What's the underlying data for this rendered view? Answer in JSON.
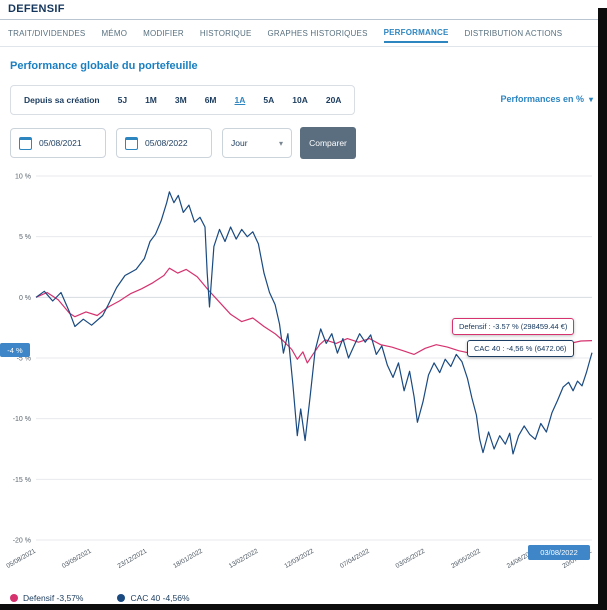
{
  "header": {
    "title": "DEFENSIF"
  },
  "tabs": [
    {
      "label": "TRAIT/DIVIDENDES"
    },
    {
      "label": "MÉMO"
    },
    {
      "label": "MODIFIER"
    },
    {
      "label": "HISTORIQUE"
    },
    {
      "label": "GRAPHES HISTORIQUES"
    },
    {
      "label": "PERFORMANCE"
    },
    {
      "label": "DISTRIBUTION ACTIONS"
    }
  ],
  "section_title": "Performance globale du portefeuille",
  "periods": [
    {
      "label": "Depuis sa création"
    },
    {
      "label": "5J"
    },
    {
      "label": "1M"
    },
    {
      "label": "3M"
    },
    {
      "label": "6M"
    },
    {
      "label": "1A"
    },
    {
      "label": "5A"
    },
    {
      "label": "10A"
    },
    {
      "label": "20A"
    }
  ],
  "active_period": "1A",
  "display_select": {
    "label": "Performances en %"
  },
  "controls": {
    "date_from": "05/08/2021",
    "date_to": "05/08/2022",
    "interval": "Jour",
    "compare": "Comparer"
  },
  "chart_badges": {
    "y_value": "-4 %",
    "x_value": "03/08/2022"
  },
  "tooltips": {
    "defensif": "Defensif : -3.57 % (298459.44 €)",
    "cac40": "CAC 40 : -4,56 % (6472.06)"
  },
  "legend": [
    {
      "label": "Defensif -3,57%",
      "color": "#d5326e"
    },
    {
      "label": "CAC 40 -4,56%",
      "color": "#1a4a80"
    }
  ],
  "colors": {
    "accent_blue": "#2e86c1",
    "navy": "#14365c",
    "badge_blue": "#3e86c7",
    "pink_series": "#d5326e",
    "blue_series": "#1a4a80"
  },
  "chart_data": {
    "type": "line",
    "title": "Performance globale du portefeuille",
    "xlabel": "",
    "ylabel": "",
    "ylim": [
      -20,
      10
    ],
    "yticks": [
      10,
      5,
      0,
      -5,
      -10,
      -15,
      -20
    ],
    "ytick_suffix": " %",
    "grid": "horizontal",
    "legend_position": "bottom",
    "xticklabels": [
      "05/08/2021",
      "03/09/2021",
      "23/12/2021",
      "18/01/2022",
      "13/02/2022",
      "12/03/2022",
      "07/04/2022",
      "03/05/2022",
      "29/05/2022",
      "24/06/2022",
      "20/07/2022"
    ],
    "x_unit": "percent_of_range",
    "series": [
      {
        "name": "Defensif",
        "color": "#d5326e",
        "final_value_pct": -3.57,
        "final_portfolio_value_eur": 298459.44,
        "points": [
          [
            0,
            0
          ],
          [
            2,
            0.4
          ],
          [
            4,
            -0.2
          ],
          [
            6,
            -1.3
          ],
          [
            7,
            -1.6
          ],
          [
            9,
            -1.2
          ],
          [
            11,
            -1.5
          ],
          [
            13,
            -0.8
          ],
          [
            15,
            -0.3
          ],
          [
            17,
            0.3
          ],
          [
            19,
            0.7
          ],
          [
            21,
            1.2
          ],
          [
            23,
            1.8
          ],
          [
            24,
            2.4
          ],
          [
            25.5,
            2.0
          ],
          [
            27,
            2.3
          ],
          [
            29,
            1.7
          ],
          [
            31,
            0.6
          ],
          [
            33,
            -0.4
          ],
          [
            35,
            -1.4
          ],
          [
            37,
            -2.0
          ],
          [
            39,
            -1.7
          ],
          [
            41,
            -2.4
          ],
          [
            43,
            -3.0
          ],
          [
            44.5,
            -3.6
          ],
          [
            46,
            -4.3
          ],
          [
            47,
            -5.1
          ],
          [
            48,
            -4.5
          ],
          [
            48.8,
            -5.4
          ],
          [
            49.8,
            -4.7
          ],
          [
            51,
            -3.9
          ],
          [
            52,
            -3.5
          ],
          [
            54,
            -3.8
          ],
          [
            56,
            -3.4
          ],
          [
            58,
            -3.7
          ],
          [
            60,
            -3.4
          ],
          [
            62,
            -3.9
          ],
          [
            64,
            -4.1
          ],
          [
            66,
            -4.4
          ],
          [
            68,
            -4.7
          ],
          [
            70,
            -4.2
          ],
          [
            72,
            -3.9
          ],
          [
            74,
            -4.1
          ],
          [
            76,
            -4.4
          ],
          [
            78,
            -4.6
          ],
          [
            80,
            -4.3
          ],
          [
            82,
            -4.1
          ],
          [
            84,
            -4.5
          ],
          [
            86,
            -4.2
          ],
          [
            88,
            -4.0
          ],
          [
            90,
            -3.9
          ],
          [
            92,
            -3.8
          ],
          [
            94,
            -3.7
          ],
          [
            96,
            -3.8
          ],
          [
            98,
            -3.6
          ],
          [
            100,
            -3.57
          ]
        ]
      },
      {
        "name": "CAC 40",
        "color": "#1a4a80",
        "final_value_pct": -4.56,
        "final_index_value": 6472.06,
        "points": [
          [
            0,
            0
          ],
          [
            1.5,
            0.5
          ],
          [
            3,
            -0.3
          ],
          [
            4.5,
            0.4
          ],
          [
            6,
            -1.2
          ],
          [
            7,
            -2.4
          ],
          [
            8.5,
            -1.8
          ],
          [
            10,
            -2.3
          ],
          [
            12,
            -1.5
          ],
          [
            13,
            -0.6
          ],
          [
            14.5,
            0.8
          ],
          [
            16,
            1.8
          ],
          [
            18,
            2.3
          ],
          [
            19.5,
            3.2
          ],
          [
            20.5,
            4.6
          ],
          [
            21.5,
            5.2
          ],
          [
            22.5,
            6.3
          ],
          [
            23.5,
            7.8
          ],
          [
            24,
            8.7
          ],
          [
            24.8,
            7.8
          ],
          [
            25.6,
            8.4
          ],
          [
            26.5,
            7.0
          ],
          [
            27.5,
            7.6
          ],
          [
            28.5,
            6.2
          ],
          [
            29.5,
            6.6
          ],
          [
            30.4,
            5.8
          ],
          [
            30.8,
            2.0
          ],
          [
            31.2,
            -0.8
          ],
          [
            32,
            4.2
          ],
          [
            33,
            5.6
          ],
          [
            34,
            4.6
          ],
          [
            35,
            5.8
          ],
          [
            36,
            4.8
          ],
          [
            37,
            5.6
          ],
          [
            38,
            5.0
          ],
          [
            39,
            5.4
          ],
          [
            40,
            4.4
          ],
          [
            41,
            2.0
          ],
          [
            42,
            0.4
          ],
          [
            43,
            -0.6
          ],
          [
            43.8,
            -2.2
          ],
          [
            44.5,
            -4.6
          ],
          [
            45.3,
            -3.0
          ],
          [
            46.2,
            -7.2
          ],
          [
            47,
            -11.4
          ],
          [
            47.6,
            -9.2
          ],
          [
            48.4,
            -11.8
          ],
          [
            49.3,
            -8.2
          ],
          [
            50.2,
            -4.4
          ],
          [
            51.2,
            -2.6
          ],
          [
            52.2,
            -3.8
          ],
          [
            53.2,
            -3.0
          ],
          [
            54.2,
            -4.6
          ],
          [
            55.2,
            -3.4
          ],
          [
            56.2,
            -5.0
          ],
          [
            57.2,
            -4.0
          ],
          [
            58.2,
            -3.0
          ],
          [
            59.2,
            -3.7
          ],
          [
            60.2,
            -3.1
          ],
          [
            61.2,
            -4.7
          ],
          [
            62.2,
            -4.0
          ],
          [
            63.2,
            -5.6
          ],
          [
            64.2,
            -6.6
          ],
          [
            65.2,
            -5.4
          ],
          [
            66.2,
            -7.7
          ],
          [
            67.2,
            -6.1
          ],
          [
            68,
            -8.2
          ],
          [
            68.6,
            -10.3
          ],
          [
            69.6,
            -8.6
          ],
          [
            70.6,
            -6.4
          ],
          [
            71.6,
            -5.4
          ],
          [
            72.6,
            -6.2
          ],
          [
            73.6,
            -5.1
          ],
          [
            74.6,
            -5.7
          ],
          [
            75.6,
            -4.7
          ],
          [
            76.6,
            -5.3
          ],
          [
            77.6,
            -6.7
          ],
          [
            78.4,
            -8.3
          ],
          [
            79.2,
            -9.7
          ],
          [
            79.8,
            -11.7
          ],
          [
            80.4,
            -12.8
          ],
          [
            81.4,
            -11.1
          ],
          [
            82.4,
            -12.5
          ],
          [
            83.4,
            -11.4
          ],
          [
            84.4,
            -12.1
          ],
          [
            85.2,
            -11.2
          ],
          [
            85.8,
            -12.9
          ],
          [
            86.8,
            -11.4
          ],
          [
            87.8,
            -10.6
          ],
          [
            88.8,
            -11.3
          ],
          [
            89.8,
            -11.7
          ],
          [
            90.8,
            -10.4
          ],
          [
            91.8,
            -11.1
          ],
          [
            92.8,
            -9.5
          ],
          [
            93.8,
            -8.5
          ],
          [
            94.8,
            -7.4
          ],
          [
            95.8,
            -7.0
          ],
          [
            96.6,
            -7.7
          ],
          [
            97.4,
            -6.9
          ],
          [
            98.2,
            -7.3
          ],
          [
            99,
            -6.2
          ],
          [
            99.6,
            -5.2
          ],
          [
            100,
            -4.56
          ]
        ]
      }
    ]
  }
}
